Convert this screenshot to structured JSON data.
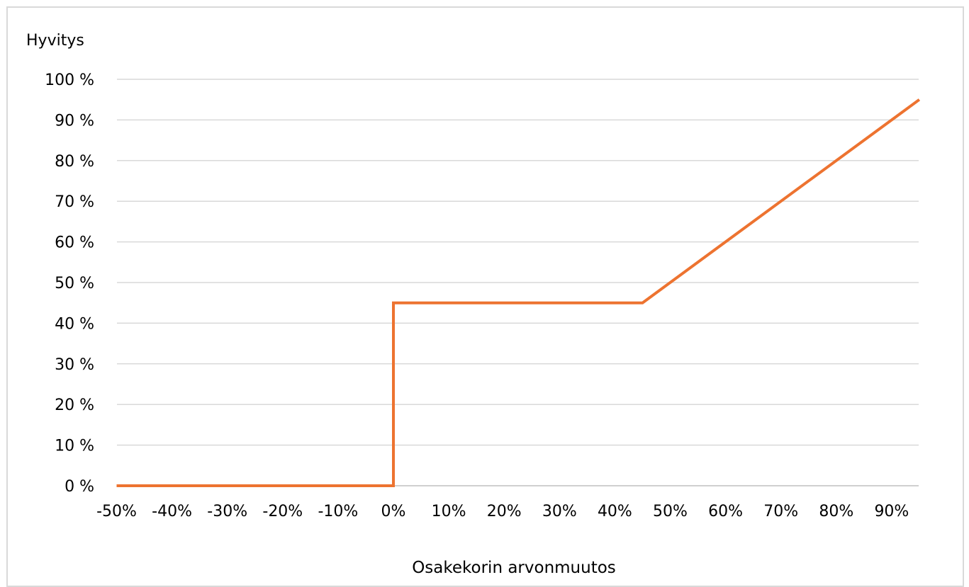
{
  "chart_data": {
    "type": "line",
    "title": "",
    "ylabel": "Hyvitys",
    "xlabel": "Osakekorin arvonmuutos",
    "x_tick_labels": [
      "-50%",
      "-40%",
      "-30%",
      "-20%",
      "-10%",
      "0%",
      "10%",
      "20%",
      "30%",
      "40%",
      "50%",
      "60%",
      "70%",
      "80%",
      "90%"
    ],
    "y_tick_labels": [
      "0 %",
      "10 %",
      "20 %",
      "30 %",
      "40 %",
      "50 %",
      "60 %",
      "70 %",
      "80 %",
      "90 %",
      "100 %"
    ],
    "x_ticks": [
      -50,
      -40,
      -30,
      -20,
      -10,
      0,
      10,
      20,
      30,
      40,
      50,
      60,
      70,
      80,
      90
    ],
    "y_ticks": [
      0,
      10,
      20,
      30,
      40,
      50,
      60,
      70,
      80,
      90,
      100
    ],
    "xlim": [
      -50,
      95
    ],
    "ylim": [
      0,
      100
    ],
    "grid": "horizontal",
    "legend": "none",
    "series": [
      {
        "color": "#ed7330",
        "points": [
          {
            "x": -50,
            "y": 0
          },
          {
            "x": 0,
            "y": 0
          },
          {
            "x": 0,
            "y": 45
          },
          {
            "x": 45,
            "y": 45
          },
          {
            "x": 95,
            "y": 95
          }
        ]
      }
    ]
  }
}
